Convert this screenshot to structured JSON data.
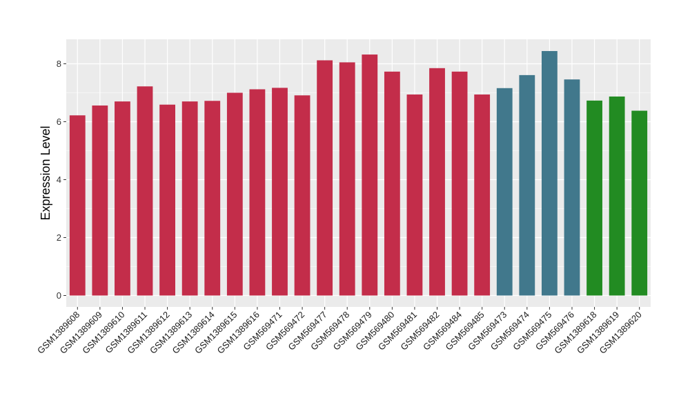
{
  "chart_data": {
    "type": "bar",
    "title": "",
    "xlabel": "",
    "ylabel": "Expression Level",
    "ylim": [
      0,
      8.8
    ],
    "y_ticks": [
      0,
      2,
      4,
      6,
      8
    ],
    "grid": true,
    "panel_background": "#EBEBEB",
    "grid_color": "#FFFFFF",
    "categories": [
      "GSM1389608",
      "GSM1389609",
      "GSM1389610",
      "GSM1389611",
      "GSM1389612",
      "GSM1389613",
      "GSM1389614",
      "GSM1389615",
      "GSM1389616",
      "GSM569471",
      "GSM569472",
      "GSM569477",
      "GSM569478",
      "GSM569479",
      "GSM569480",
      "GSM569481",
      "GSM569482",
      "GSM569484",
      "GSM569485",
      "GSM569473",
      "GSM569474",
      "GSM569475",
      "GSM569476",
      "GSM1389618",
      "GSM1389619",
      "GSM1389620"
    ],
    "values": [
      6.22,
      6.56,
      6.7,
      7.22,
      6.59,
      6.7,
      6.72,
      7.0,
      7.12,
      7.17,
      6.91,
      8.12,
      8.05,
      8.32,
      7.73,
      6.94,
      7.85,
      7.73,
      6.94,
      7.16,
      7.61,
      8.44,
      7.46,
      6.73,
      6.87,
      6.38
    ],
    "bar_colors": [
      "#C32D4A",
      "#C32D4A",
      "#C32D4A",
      "#C32D4A",
      "#C32D4A",
      "#C32D4A",
      "#C32D4A",
      "#C32D4A",
      "#C32D4A",
      "#C32D4A",
      "#C32D4A",
      "#C32D4A",
      "#C32D4A",
      "#C32D4A",
      "#C32D4A",
      "#C32D4A",
      "#C32D4A",
      "#C32D4A",
      "#C32D4A",
      "#41788C",
      "#41788C",
      "#41788C",
      "#41788C",
      "#228B22",
      "#228B22",
      "#228B22"
    ]
  }
}
